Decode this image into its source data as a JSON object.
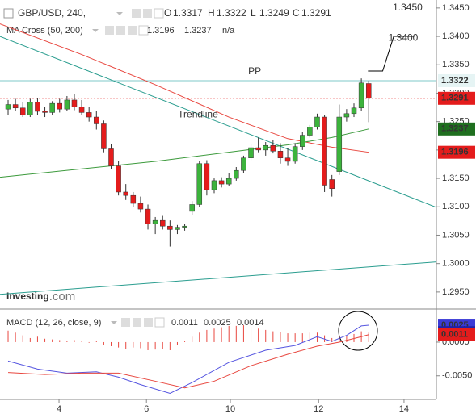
{
  "chart_data": {
    "type": "candlestick",
    "title": "GBP/USD, 240,",
    "ohlc_labels": [
      "O",
      "H",
      "L",
      "C"
    ],
    "ohlc_values": [
      1.3317,
      1.3322,
      1.3249,
      1.3291
    ],
    "ohlc_color": "#e41c1c",
    "up_color": "#3cb33c",
    "down_color": "#e41c1c",
    "open": [
      1.3272,
      1.328,
      1.3274,
      1.3262,
      1.3284,
      1.3268,
      1.3266,
      1.3282,
      1.3272,
      1.3288,
      1.3276,
      1.3266,
      1.3258,
      1.3246,
      1.3202,
      1.3172,
      1.3126,
      1.312,
      1.3106,
      1.3096,
      1.307,
      1.3076,
      1.3066,
      1.306,
      1.3064,
      1.3092,
      1.3104,
      1.3176,
      1.313,
      1.3146,
      1.314,
      1.315,
      1.3164,
      1.3186,
      1.3204,
      1.32,
      1.3208,
      1.3198,
      1.3186,
      1.318,
      1.3206,
      1.3226,
      1.324,
      1.3258,
      1.3148,
      1.3162,
      1.3258,
      1.3264,
      1.3274,
      1.3317
    ],
    "high": [
      1.3288,
      1.329,
      1.3285,
      1.329,
      1.3292,
      1.3276,
      1.3286,
      1.329,
      1.3295,
      1.3298,
      1.3288,
      1.3276,
      1.3268,
      1.3252,
      1.321,
      1.318,
      1.314,
      1.3126,
      1.3118,
      1.3104,
      1.3082,
      1.3084,
      1.3076,
      1.3068,
      1.307,
      1.311,
      1.318,
      1.3182,
      1.315,
      1.3152,
      1.316,
      1.317,
      1.319,
      1.321,
      1.3222,
      1.3214,
      1.3218,
      1.3212,
      1.3204,
      1.3212,
      1.3232,
      1.3244,
      1.3264,
      1.3262,
      1.3156,
      1.328,
      1.3272,
      1.3282,
      1.3326,
      1.3322
    ],
    "low": [
      1.3262,
      1.3268,
      1.3258,
      1.3258,
      1.3262,
      1.3258,
      1.3262,
      1.3266,
      1.3268,
      1.327,
      1.3262,
      1.325,
      1.3236,
      1.3196,
      1.3166,
      1.312,
      1.3112,
      1.31,
      1.309,
      1.306,
      1.3052,
      1.306,
      1.303,
      1.3052,
      1.3058,
      1.3086,
      1.31,
      1.312,
      1.3124,
      1.3134,
      1.3136,
      1.3146,
      1.316,
      1.3182,
      1.3196,
      1.319,
      1.3194,
      1.3176,
      1.3172,
      1.3176,
      1.32,
      1.3222,
      1.3236,
      1.3126,
      1.3118,
      1.3156,
      1.325,
      1.3258,
      1.3268,
      1.3249
    ],
    "close": [
      1.328,
      1.3274,
      1.3262,
      1.3284,
      1.3268,
      1.3266,
      1.3282,
      1.3272,
      1.3288,
      1.3276,
      1.3266,
      1.3258,
      1.3246,
      1.3202,
      1.3172,
      1.3126,
      1.312,
      1.3106,
      1.3096,
      1.307,
      1.3076,
      1.3066,
      1.306,
      1.3064,
      1.3066,
      1.3104,
      1.3176,
      1.313,
      1.3146,
      1.314,
      1.315,
      1.3164,
      1.3186,
      1.3204,
      1.32,
      1.3208,
      1.3198,
      1.3186,
      1.318,
      1.3206,
      1.3226,
      1.324,
      1.3258,
      1.3138,
      1.3132,
      1.3258,
      1.3264,
      1.3274,
      1.3318,
      1.3291
    ],
    "xlim": [
      -1.1,
      58.2
    ],
    "xticks": [
      {
        "value": 6.92,
        "label": "4"
      },
      {
        "value": 18.8,
        "label": "6"
      },
      {
        "value": 30.2,
        "label": "10"
      },
      {
        "value": 42.2,
        "label": "12"
      },
      {
        "value": 53.8,
        "label": "14"
      }
    ],
    "ylim": [
      1.292,
      1.3464
    ],
    "yticks": [
      {
        "value": 1.345,
        "label": "1.3450"
      },
      {
        "value": 1.34,
        "label": "1.3400"
      },
      {
        "value": 1.335,
        "label": "1.3350"
      },
      {
        "value": 1.33,
        "label": "1.3300"
      },
      {
        "value": 1.325,
        "label": "1.3250"
      },
      {
        "value": 1.32,
        "label": "1.3200"
      },
      {
        "value": 1.315,
        "label": "1.3150"
      },
      {
        "value": 1.31,
        "label": "1.3100"
      },
      {
        "value": 1.305,
        "label": "1.3050"
      },
      {
        "value": 1.3,
        "label": "1.3000"
      },
      {
        "value": 1.295,
        "label": "1.2950"
      }
    ],
    "ma_legend": "MA Cross (50, 200)",
    "ma_legend_values": [
      1.3196,
      1.3237
    ],
    "ma_legend_na": "n/a",
    "moving_averages": [
      {
        "color": "#e8473f",
        "x": [
          -1.1,
          10,
          20,
          30,
          38,
          44,
          49
        ],
        "values": [
          1.3422,
          1.3368,
          1.3315,
          1.3258,
          1.322,
          1.3205,
          1.3196
        ]
      },
      {
        "color": "#3c9a3c",
        "x": [
          -1.1,
          20,
          38,
          44,
          49
        ],
        "values": [
          1.3152,
          1.318,
          1.3209,
          1.3222,
          1.3237
        ]
      }
    ],
    "trendlines": [
      {
        "color": "#2a9d8f",
        "x": [
          -1.1,
          58.2
        ],
        "values": [
          1.34,
          1.3099
        ]
      },
      {
        "color": "#2a9d8f",
        "x": [
          -1.1,
          58.2
        ],
        "values": [
          1.2946,
          1.3003
        ]
      }
    ],
    "pp_level": 1.3322,
    "current_price": 1.3291,
    "target_path": {
      "x": [
        48.9,
        50.9,
        52.4,
        55.2
      ],
      "values": [
        1.3339,
        1.3339,
        1.34,
        1.34
      ]
    },
    "annotations": [
      {
        "text": "PP",
        "x": 33.5,
        "y": 1.3338
      },
      {
        "text": "Trendline",
        "x": 25.8,
        "y": 1.3262
      },
      {
        "text": "1.3400",
        "x": 53.7,
        "y": 1.3397
      },
      {
        "text": "1.3450",
        "x": 54.3,
        "y": 1.345
      }
    ],
    "price_tags": [
      {
        "value": 1.3322,
        "color": "#e6f4f4",
        "text_color": "#222"
      },
      {
        "value": 1.3291,
        "color": "#e41c1c",
        "text_color": "#fff"
      },
      {
        "value": 1.3237,
        "color": "#1f6f1f",
        "text_color": "#fff"
      },
      {
        "value": 1.3196,
        "color": "#e41c1c",
        "text_color": "#fff"
      }
    ],
    "watermark": [
      "Investing",
      ".com"
    ],
    "macd": {
      "legend": "MACD (12, 26, close, 9)",
      "legend_values": [
        {
          "value": 0.0011,
          "color": "#e41c1c"
        },
        {
          "value": 0.0025,
          "color": "#3b3bd6"
        },
        {
          "value": 0.0014,
          "color": "#e41c1c"
        }
      ],
      "ylim": [
        -0.0085,
        0.0049
      ],
      "yticks": [
        {
          "value": 0,
          "label": "0.0000"
        },
        {
          "value": -0.005,
          "label": "-0.0050"
        }
      ],
      "macd_line": {
        "color": "#5555e0",
        "x": [
          0,
          4,
          8,
          12,
          15,
          18,
          22,
          25,
          30,
          35,
          39,
          42,
          44,
          46,
          48,
          49
        ],
        "values": [
          -0.0028,
          -0.004,
          -0.0046,
          -0.0044,
          -0.0052,
          -0.0063,
          -0.0076,
          -0.006,
          -0.003,
          -0.0012,
          -0.0005,
          0.0008,
          0.0001,
          0.001,
          0.0024,
          0.0025
        ]
      },
      "signal_line": {
        "color": "#e8473f",
        "x": [
          0,
          5,
          10,
          15,
          20,
          24,
          28,
          33,
          38,
          42,
          45,
          48,
          49
        ],
        "values": [
          -0.0045,
          -0.0048,
          -0.0046,
          -0.0046,
          -0.0058,
          -0.0068,
          -0.0058,
          -0.0035,
          -0.0018,
          -0.0006,
          0,
          0.0008,
          0.0011
        ]
      },
      "histogram": {
        "color": "#e8473f",
        "values": [
          0.0017,
          0.0014,
          0.001,
          0.0006,
          0.0008,
          0.0005,
          0.0004,
          0.0003,
          0.0002,
          0.0003,
          0.0001,
          -0.0001,
          0.0002,
          -0.0004,
          -0.0006,
          -0.0008,
          -0.001,
          -0.0008,
          -0.0009,
          -0.0012,
          -0.0011,
          -0.001,
          -0.0012,
          -0.0004,
          0.0002,
          0.0008,
          0.0014,
          0.0018,
          0.002,
          0.0022,
          0.0024,
          0.0024,
          0.0025,
          0.0023,
          0.002,
          0.0018,
          0.0016,
          0.0015,
          0.0013,
          0.0013,
          0.0013,
          0.0014,
          0.0014,
          0.001,
          0.0006,
          0.0008,
          0.001,
          0.0012,
          0.0016,
          0.0014
        ]
      },
      "tags": [
        {
          "value": 0.0025,
          "color": "#3b3bd6",
          "text_color": "#fff"
        },
        {
          "value": 0.0014,
          "color": "#2020a8",
          "text_color": "#fff"
        },
        {
          "value": 0.0011,
          "color": "#e41c1c",
          "text_color": "#fff"
        }
      ]
    }
  }
}
